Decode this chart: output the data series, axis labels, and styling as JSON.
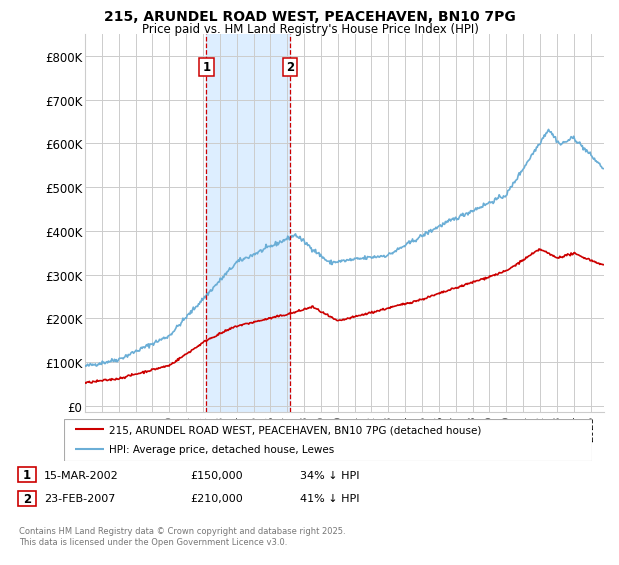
{
  "title1": "215, ARUNDEL ROAD WEST, PEACEHAVEN, BN10 7PG",
  "title2": "Price paid vs. HM Land Registry's House Price Index (HPI)",
  "yticks": [
    0,
    100000,
    200000,
    300000,
    400000,
    500000,
    600000,
    700000,
    800000
  ],
  "ytick_labels": [
    "£0",
    "£100K",
    "£200K",
    "£300K",
    "£400K",
    "£500K",
    "£600K",
    "£700K",
    "£800K"
  ],
  "ylim": [
    -15000,
    850000
  ],
  "xlim_start": 1995.0,
  "xlim_end": 2025.8,
  "xticks": [
    1995,
    1996,
    1997,
    1998,
    1999,
    2000,
    2001,
    2002,
    2003,
    2004,
    2005,
    2006,
    2007,
    2008,
    2009,
    2010,
    2011,
    2012,
    2013,
    2014,
    2015,
    2016,
    2017,
    2018,
    2019,
    2020,
    2021,
    2022,
    2023,
    2024,
    2025
  ],
  "vline1_x": 2002.21,
  "vline2_x": 2007.15,
  "sale1_label": "1",
  "sale2_label": "2",
  "sale1_date": "15-MAR-2002",
  "sale1_price": "£150,000",
  "sale1_hpi": "34% ↓ HPI",
  "sale2_date": "23-FEB-2007",
  "sale2_price": "£210,000",
  "sale2_hpi": "41% ↓ HPI",
  "legend_line1": "215, ARUNDEL ROAD WEST, PEACEHAVEN, BN10 7PG (detached house)",
  "legend_line2": "HPI: Average price, detached house, Lewes",
  "footer": "Contains HM Land Registry data © Crown copyright and database right 2025.\nThis data is licensed under the Open Government Licence v3.0.",
  "hpi_color": "#6baed6",
  "price_color": "#cc0000",
  "shade_color": "#ddeeff",
  "grid_color": "#cccccc",
  "background_color": "#ffffff"
}
